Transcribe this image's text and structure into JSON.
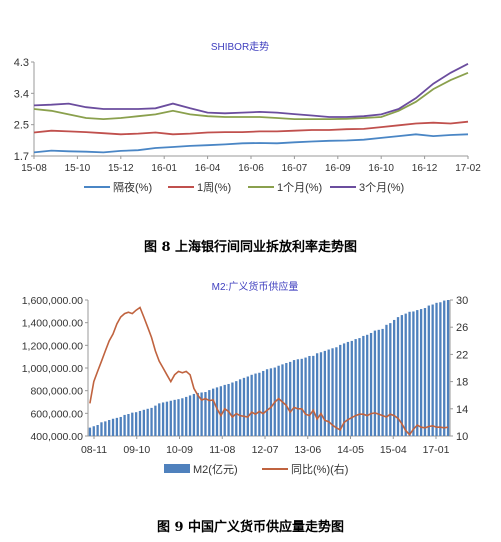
{
  "captions": {
    "fig8": "图 8 上海银行间同业拆放利率走势图",
    "fig9": "图 9  中国广义货币供应量走势图"
  },
  "chart_data": [
    {
      "type": "line",
      "title": "SHIBOR走势",
      "x_tick_labels": [
        "15-08",
        "15-10",
        "15-12",
        "16-01",
        "16-04",
        "16-06",
        "16-07",
        "16-09",
        "16-10",
        "16-12",
        "17-02"
      ],
      "ylim": [
        1.7,
        4.3
      ],
      "y_ticks": [
        "1.7",
        "2.5",
        "3.4",
        "4.3"
      ],
      "grid": false,
      "legend_position": "bottom",
      "x": [
        0,
        4,
        8,
        12,
        16,
        20,
        24,
        28,
        32,
        36,
        40,
        44,
        48,
        52,
        56,
        60,
        64,
        68,
        72,
        76,
        80,
        84,
        88,
        92,
        96,
        100
      ],
      "series": [
        {
          "name": "隔夜(%)",
          "color": "#4a86c5",
          "values": [
            1.8,
            1.85,
            1.83,
            1.82,
            1.8,
            1.84,
            1.86,
            1.92,
            1.95,
            1.98,
            2.0,
            2.02,
            2.05,
            2.06,
            2.05,
            2.08,
            2.1,
            2.12,
            2.13,
            2.15,
            2.2,
            2.25,
            2.3,
            2.25,
            2.28,
            2.3
          ]
        },
        {
          "name": "1周(%)",
          "color": "#c0504d",
          "values": [
            2.35,
            2.4,
            2.38,
            2.36,
            2.33,
            2.3,
            2.32,
            2.35,
            2.3,
            2.32,
            2.35,
            2.36,
            2.36,
            2.38,
            2.38,
            2.4,
            2.42,
            2.42,
            2.44,
            2.45,
            2.5,
            2.55,
            2.6,
            2.62,
            2.6,
            2.65
          ]
        },
        {
          "name": "1个月(%)",
          "color": "#8aa04d",
          "values": [
            3.0,
            2.95,
            2.85,
            2.75,
            2.72,
            2.75,
            2.8,
            2.85,
            2.95,
            2.85,
            2.8,
            2.78,
            2.78,
            2.78,
            2.75,
            2.72,
            2.72,
            2.72,
            2.73,
            2.75,
            2.78,
            2.95,
            3.2,
            3.55,
            3.8,
            4.0
          ]
        },
        {
          "name": "3个月(%)",
          "color": "#6b4d9e",
          "values": [
            3.1,
            3.12,
            3.15,
            3.05,
            3.0,
            3.0,
            3.0,
            3.02,
            3.15,
            3.02,
            2.9,
            2.88,
            2.9,
            2.92,
            2.9,
            2.86,
            2.82,
            2.78,
            2.78,
            2.8,
            2.85,
            3.0,
            3.3,
            3.7,
            4.0,
            4.25
          ]
        }
      ]
    },
    {
      "type": "bar",
      "title": "M2:广义货币供应量",
      "x_tick_labels": [
        "08-11",
        "09-10",
        "10-09",
        "11-08",
        "12-07",
        "13-06",
        "14-05",
        "15-04",
        "17-01"
      ],
      "ylim": [
        400000,
        1600000
      ],
      "y_ticks": [
        "400,000.00",
        "600,000.00",
        "800,000.00",
        "1,000,000.00",
        "1,200,000.00",
        "1,400,000.00",
        "1,600,000.00"
      ],
      "y2lim": [
        10,
        30
      ],
      "y2_ticks": [
        "10",
        "14",
        "18",
        "22",
        "26",
        "30"
      ],
      "grid": false,
      "legend_position": "bottom",
      "series": [
        {
          "name": "M2(亿元)",
          "color": "#4f81bd",
          "axis": "left",
          "values": [
            474000,
            486000,
            497000,
            521000,
            529000,
            541000,
            552000,
            560000,
            568000,
            586000,
            594000,
            606000,
            610000,
            621000,
            631000,
            640000,
            648000,
            668000,
            688000,
            696000,
            703000,
            711000,
            719000,
            725000,
            733000,
            745000,
            758000,
            771000,
            780000,
            784000,
            788000,
            805000,
            818000,
            829000,
            839000,
            851000,
            859000,
            872000,
            884000,
            900000,
            913000,
            925000,
            940000,
            951000,
            958000,
            974000,
            989000,
            997000,
            1004000,
            1020000,
            1032000,
            1044000,
            1054000,
            1070000,
            1077000,
            1081000,
            1092000,
            1106000,
            1107000,
            1130000,
            1139000,
            1151000,
            1163000,
            1174000,
            1183000,
            1204000,
            1217000,
            1230000,
            1239000,
            1255000,
            1264000,
            1283000,
            1293000,
            1309000,
            1330000,
            1337000,
            1345000,
            1381000,
            1396000,
            1424000,
            1449000,
            1467000,
            1480000,
            1496000,
            1499000,
            1511000,
            1520000,
            1529000,
            1551000,
            1560000,
            1575000,
            1580000,
            1595000,
            1600000
          ]
        },
        {
          "name": "同比(%)(右)",
          "color": "#c0633f",
          "axis": "right",
          "values": [
            14.8,
            18.0,
            19.5,
            21.0,
            22.5,
            24.0,
            25.0,
            26.5,
            27.5,
            28.0,
            28.2,
            28.0,
            28.5,
            28.9,
            27.5,
            26.0,
            24.5,
            22.5,
            21.0,
            20.0,
            19.0,
            18.0,
            19.0,
            19.5,
            19.3,
            19.5,
            19.0,
            17.0,
            16.0,
            15.3,
            15.5,
            15.2,
            15.3,
            14.0,
            13.0,
            14.0,
            13.6,
            12.8,
            13.3,
            13.0,
            12.9,
            12.8,
            13.5,
            13.2,
            13.6,
            13.3,
            13.8,
            14.2,
            15.0,
            15.5,
            15.0,
            14.5,
            13.5,
            14.2,
            14.0,
            14.0,
            13.2,
            13.0,
            13.8,
            12.5,
            13.3,
            12.3,
            12.1,
            11.6,
            11.2,
            10.9,
            12.0,
            12.4,
            12.7,
            13.0,
            13.2,
            13.2,
            13.0,
            13.3,
            13.4,
            13.2,
            13.0,
            12.8,
            13.2,
            13.0,
            12.6,
            11.8,
            10.8,
            10.2,
            11.0,
            11.6,
            11.3,
            11.2,
            11.4,
            11.5,
            11.3,
            11.3,
            11.2,
            11.3
          ]
        }
      ]
    }
  ]
}
